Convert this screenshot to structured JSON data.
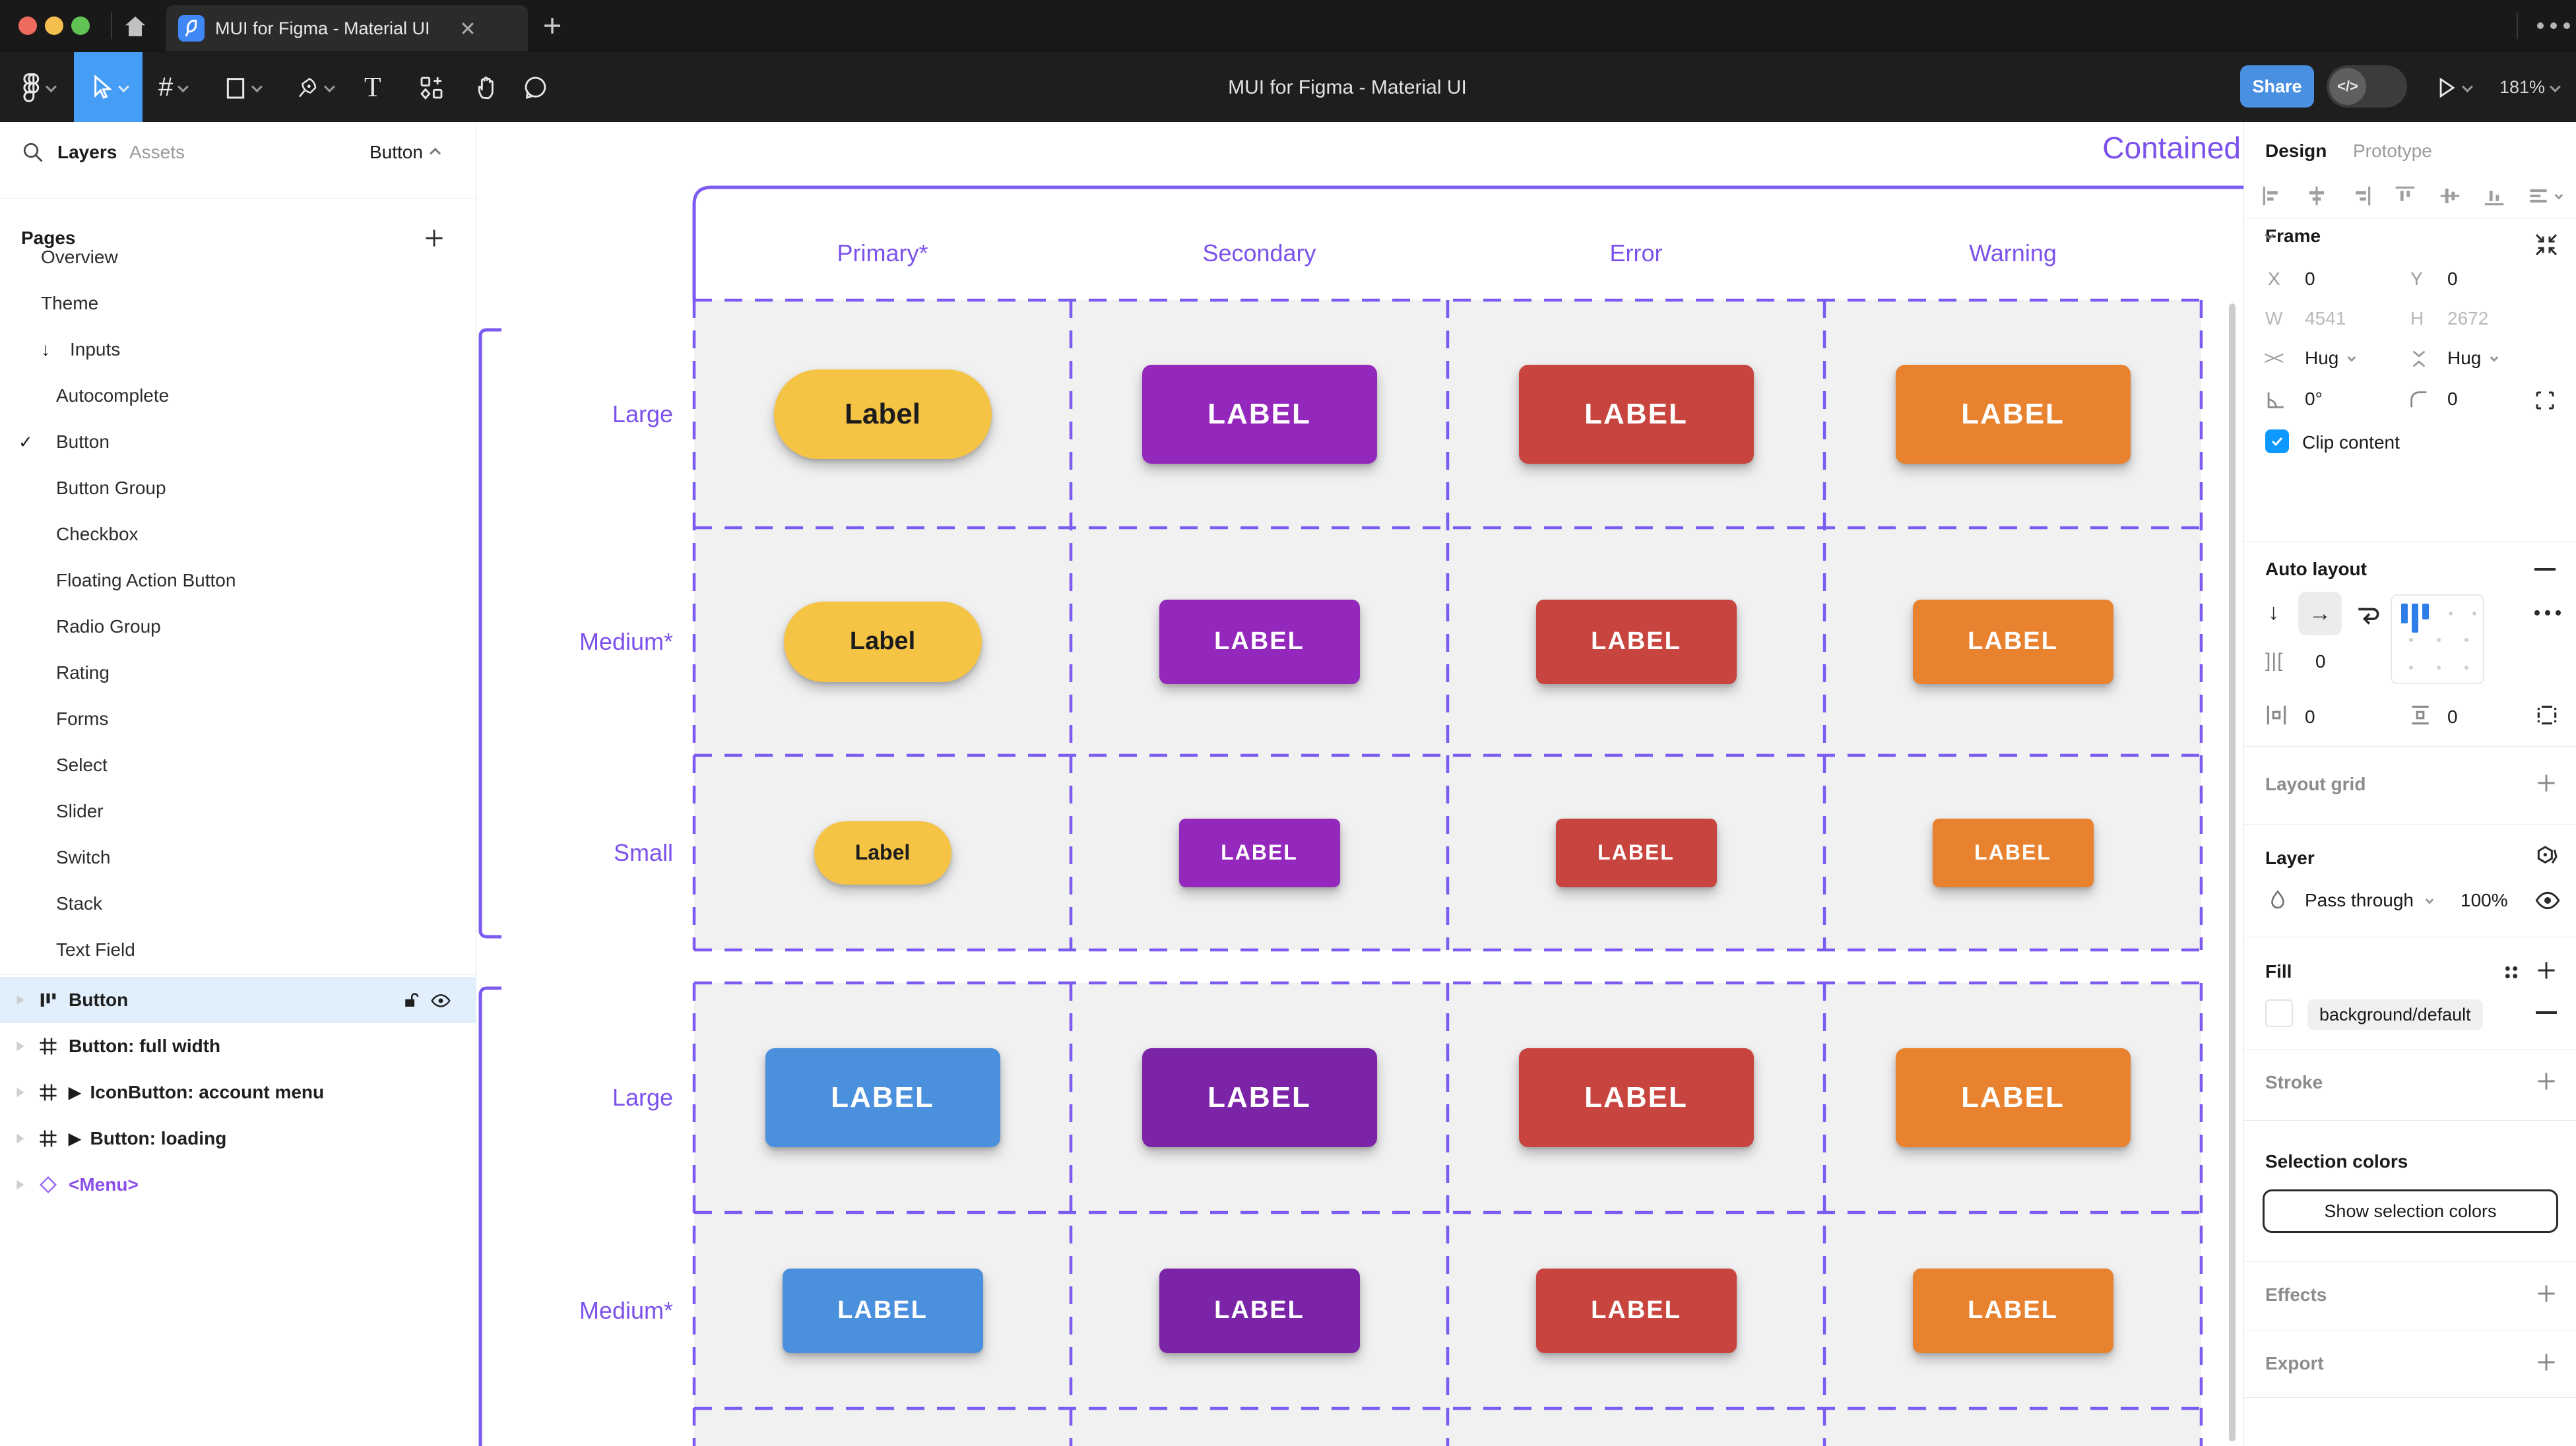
{
  "window": {
    "tab_title": "MUI for Figma - Material UI",
    "close_label": "✕",
    "new_tab_label": "+",
    "more_label": "more"
  },
  "toolbar": {
    "title": "MUI for Figma - Material UI",
    "share_label": "Share",
    "devmode_label": "</>",
    "zoom_level": "181%"
  },
  "sidebar": {
    "tabs": {
      "layers": "Layers",
      "assets": "Assets"
    },
    "page_selector": "Button",
    "pages_label": "Pages",
    "pages": [
      {
        "label": "Overview",
        "level": 0
      },
      {
        "label": "Theme",
        "level": 0
      },
      {
        "label": "Inputs",
        "level": 0,
        "arrow": "↓"
      },
      {
        "label": "Autocomplete",
        "level": 1
      },
      {
        "label": "Button",
        "level": 1,
        "checked": "✓"
      },
      {
        "label": "Button Group",
        "level": 1
      },
      {
        "label": "Checkbox",
        "level": 1
      },
      {
        "label": "Floating Action Button",
        "level": 1
      },
      {
        "label": "Radio Group",
        "level": 1
      },
      {
        "label": "Rating",
        "level": 1
      },
      {
        "label": "Forms",
        "level": 1
      },
      {
        "label": "Select",
        "level": 1
      },
      {
        "label": "Slider",
        "level": 1
      },
      {
        "label": "Switch",
        "level": 1
      },
      {
        "label": "Stack",
        "level": 1
      },
      {
        "label": "Text Field",
        "level": 1
      }
    ],
    "layers": [
      {
        "label": "Button",
        "icon": "auto-layout",
        "selected": true
      },
      {
        "label": "Button: full width",
        "icon": "frame"
      },
      {
        "label": "IconButton: account menu",
        "icon": "frame",
        "variant": true
      },
      {
        "label": "Button: loading",
        "icon": "frame",
        "variant": true
      },
      {
        "label": "<Menu>",
        "icon": "component"
      }
    ]
  },
  "canvas": {
    "frame_title": "Contained",
    "accent_color": "#7c52eb",
    "dash_color": "#7b5bf0",
    "cell_color": "#f1f1f2",
    "column_headers": [
      "Primary*",
      "Secondary",
      "Error",
      "Warning"
    ],
    "groups": [
      {
        "rows": [
          {
            "label": "Large",
            "size": "large"
          },
          {
            "label": "Medium*",
            "size": "medium"
          },
          {
            "label": "Small",
            "size": "small"
          }
        ],
        "buttons": [
          {
            "bg": "#f6c445",
            "fg": "#1c1c1c",
            "label": "Label",
            "pill": true
          },
          {
            "bg": "#9427bc",
            "fg": "#ffffff",
            "label": "LABEL"
          },
          {
            "bg": "#c8453f",
            "fg": "#ffffff",
            "label": "LABEL"
          },
          {
            "bg": "#e8822f",
            "fg": "#ffffff",
            "label": "LABEL"
          }
        ]
      },
      {
        "rows": [
          {
            "label": "Large",
            "size": "large"
          },
          {
            "label": "Medium*",
            "size": "medium"
          }
        ],
        "buttons": [
          {
            "bg": "#4a90dc",
            "fg": "#ffffff",
            "label": "LABEL"
          },
          {
            "bg": "#7b24a8",
            "fg": "#ffffff",
            "label": "LABEL"
          },
          {
            "bg": "#c8453f",
            "fg": "#ffffff",
            "label": "LABEL"
          },
          {
            "bg": "#e8822f",
            "fg": "#ffffff",
            "label": "LABEL"
          }
        ]
      }
    ]
  },
  "panel": {
    "tabs": {
      "design": "Design",
      "prototype": "Prototype"
    },
    "frame": {
      "label": "Frame",
      "x_label": "X",
      "x": "0",
      "y_label": "Y",
      "y": "0",
      "w_label": "W",
      "w": "4541",
      "h_label": "H",
      "h": "2672",
      "hug_h": "Hug",
      "hug_v": "Hug",
      "rotation": "0°",
      "radius": "0",
      "clip_label": "Clip content"
    },
    "auto_layout": {
      "label": "Auto layout",
      "gap": "0",
      "pad_h": "0",
      "pad_v": "0"
    },
    "layout_grid_label": "Layout grid",
    "layer": {
      "label": "Layer",
      "blend_mode": "Pass through",
      "opacity": "100%"
    },
    "fill": {
      "label": "Fill",
      "token": "background/default"
    },
    "stroke_label": "Stroke",
    "selection_colors": {
      "label": "Selection colors",
      "button_label": "Show selection colors"
    },
    "effects_label": "Effects",
    "export_label": "Export"
  }
}
